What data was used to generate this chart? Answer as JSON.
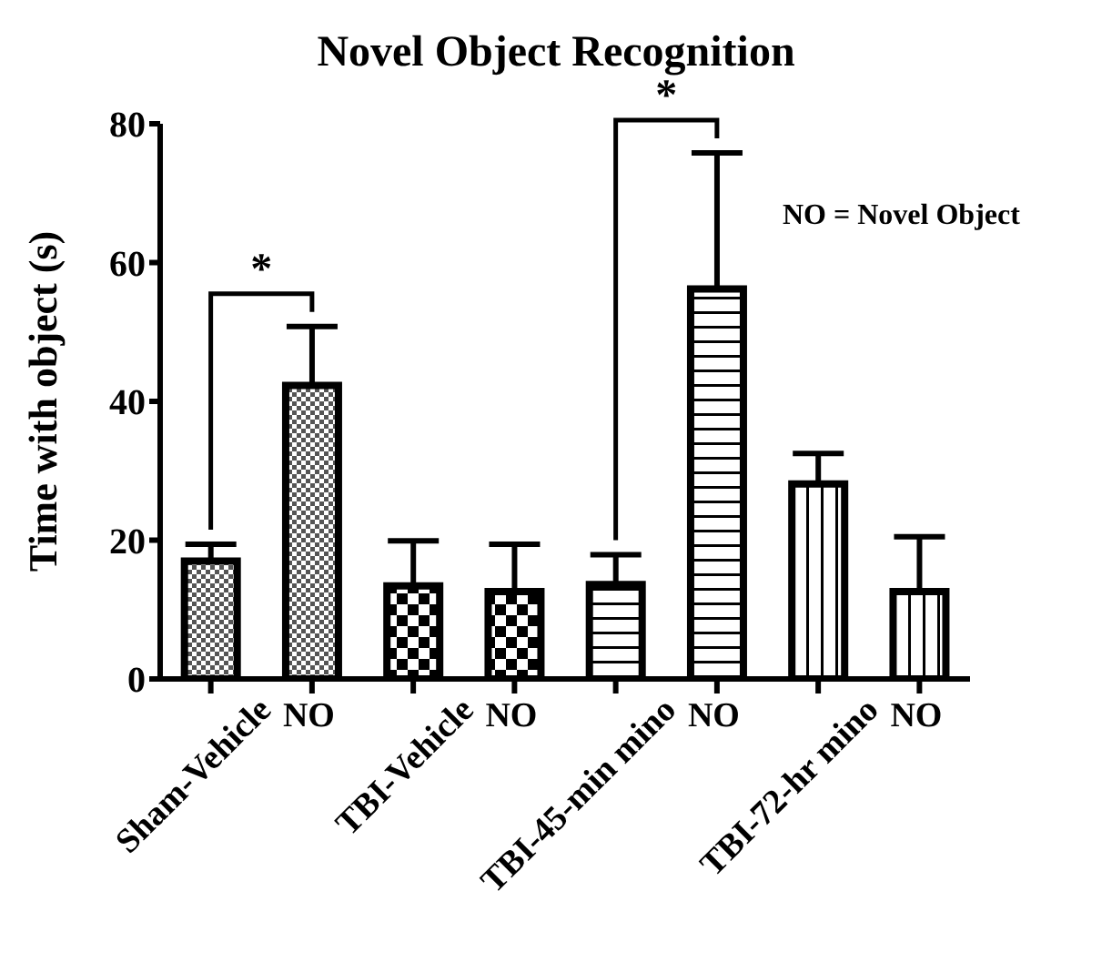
{
  "chart_data": {
    "type": "bar",
    "title": "Novel Object Recognition",
    "ylabel": "Time with object (s)",
    "categories": [
      "Sham-Vehicle",
      "NO",
      "TBI-Vehicle",
      "NO",
      "TBI-45-min mino",
      "NO",
      "TBI-72-hr mino",
      "NO"
    ],
    "values": [
      17,
      42.3,
      13.4,
      12.6,
      13.6,
      56.2,
      28.1,
      12.6
    ],
    "errors": [
      [
        17,
        19.4
      ],
      [
        42.3,
        50.8
      ],
      [
        13.4,
        19.9
      ],
      [
        12.6,
        19.4
      ],
      [
        13.6,
        17.9
      ],
      [
        56.2,
        75.8
      ],
      [
        28.1,
        32.5
      ],
      [
        12.6,
        20.5
      ]
    ],
    "color": "#000000",
    "ylim": [
      0,
      80
    ],
    "yticks": [
      0,
      20,
      40,
      60,
      80
    ],
    "grid": false,
    "legend": false,
    "annotations": [
      "NO = Novel Object",
      "*",
      "*"
    ]
  }
}
